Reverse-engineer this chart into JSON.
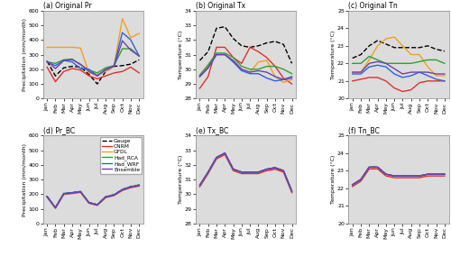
{
  "months": [
    "Jan",
    "Feb",
    "Mar",
    "Apr",
    "May",
    "Jun",
    "Jul",
    "Aug",
    "Sep",
    "Oct",
    "Nov",
    "Dec"
  ],
  "panels": {
    "a": {
      "title": "(a) Original Pr",
      "ylabel": "Precipitation (mm/month)",
      "ylim": [
        0,
        600
      ],
      "yticks": [
        0,
        100,
        200,
        300,
        400,
        500,
        600
      ],
      "series": {
        "Gauge": {
          "color": "#000000",
          "lw": 1.0,
          "ls": "--",
          "data": [
            255,
            155,
            210,
            220,
            215,
            165,
            100,
            185,
            220,
            225,
            235,
            265
          ]
        },
        "CNRM": {
          "color": "#e03030",
          "lw": 1.0,
          "ls": "-",
          "data": [
            215,
            115,
            185,
            205,
            195,
            155,
            135,
            155,
            175,
            185,
            215,
            175
          ]
        },
        "GFDL": {
          "color": "#f0a020",
          "lw": 1.0,
          "ls": "-",
          "data": [
            350,
            350,
            350,
            350,
            345,
            175,
            165,
            185,
            220,
            545,
            415,
            445
          ]
        },
        "Had_RCA": {
          "color": "#30a030",
          "lw": 1.0,
          "ls": "-",
          "data": [
            250,
            240,
            265,
            270,
            230,
            195,
            175,
            210,
            225,
            340,
            340,
            290
          ]
        },
        "Had_WRF": {
          "color": "#3060e0",
          "lw": 1.0,
          "ls": "-",
          "data": [
            250,
            225,
            260,
            250,
            205,
            200,
            155,
            195,
            225,
            450,
            400,
            290
          ]
        },
        "Ensemble": {
          "color": "#7040b0",
          "lw": 1.0,
          "ls": "-",
          "data": [
            255,
            205,
            260,
            265,
            235,
            185,
            155,
            200,
            220,
            395,
            330,
            290
          ]
        }
      }
    },
    "b": {
      "title": "(b) Original Tx",
      "ylabel": "Temperature (°C)",
      "ylim": [
        28,
        34
      ],
      "yticks": [
        28,
        29,
        30,
        31,
        32,
        33,
        34
      ],
      "series": {
        "Gauge": {
          "color": "#000000",
          "lw": 1.0,
          "ls": "--",
          "data": [
            30.6,
            31.2,
            32.8,
            32.9,
            32.1,
            31.6,
            31.5,
            31.6,
            31.8,
            31.9,
            31.7,
            30.4
          ]
        },
        "CNRM": {
          "color": "#e03030",
          "lw": 1.0,
          "ls": "-",
          "data": [
            28.7,
            29.5,
            31.5,
            31.5,
            30.8,
            30.4,
            31.5,
            31.2,
            30.8,
            30.2,
            29.4,
            29.0
          ]
        },
        "GFDL": {
          "color": "#f0a020",
          "lw": 1.0,
          "ls": "-",
          "data": [
            29.6,
            30.2,
            31.0,
            31.0,
            30.5,
            30.0,
            29.8,
            30.5,
            30.6,
            29.5,
            29.1,
            29.3
          ]
        },
        "Had_RCA": {
          "color": "#30a030",
          "lw": 1.0,
          "ls": "-",
          "data": [
            29.6,
            30.3,
            31.1,
            31.1,
            30.8,
            30.2,
            30.0,
            30.0,
            30.2,
            30.2,
            30.0,
            29.7
          ]
        },
        "Had_WRF": {
          "color": "#3060e0",
          "lw": 1.0,
          "ls": "-",
          "data": [
            29.5,
            30.1,
            31.0,
            31.0,
            30.5,
            29.9,
            29.7,
            29.7,
            29.4,
            29.2,
            29.3,
            29.5
          ]
        },
        "Ensemble": {
          "color": "#7040b0",
          "lw": 1.0,
          "ls": "-",
          "data": [
            29.5,
            30.1,
            31.0,
            31.0,
            30.6,
            30.0,
            29.8,
            29.9,
            29.8,
            29.5,
            29.3,
            29.4
          ]
        }
      }
    },
    "c": {
      "title": "(c) Original Tn",
      "ylabel": "Temperature (°C)",
      "ylim": [
        20,
        25
      ],
      "yticks": [
        20,
        21,
        22,
        23,
        24,
        25
      ],
      "series": {
        "Gauge": {
          "color": "#000000",
          "lw": 1.0,
          "ls": "--",
          "data": [
            22.3,
            22.5,
            23.0,
            23.3,
            23.1,
            22.9,
            22.9,
            22.9,
            22.9,
            23.0,
            22.8,
            22.7
          ]
        },
        "CNRM": {
          "color": "#e03030",
          "lw": 1.0,
          "ls": "-",
          "data": [
            21.0,
            21.1,
            21.2,
            21.2,
            21.0,
            20.6,
            20.4,
            20.5,
            20.9,
            21.0,
            21.0,
            21.0
          ]
        },
        "GFDL": {
          "color": "#f0a020",
          "lw": 1.0,
          "ls": "-",
          "data": [
            21.5,
            21.5,
            22.2,
            23.0,
            23.4,
            23.5,
            23.0,
            22.5,
            22.5,
            21.8,
            21.3,
            21.3
          ]
        },
        "Had_RCA": {
          "color": "#30a030",
          "lw": 1.0,
          "ls": "-",
          "data": [
            22.0,
            22.0,
            22.4,
            22.2,
            22.0,
            22.0,
            22.0,
            22.0,
            22.1,
            22.2,
            22.2,
            22.0
          ]
        },
        "Had_WRF": {
          "color": "#3060e0",
          "lw": 1.0,
          "ls": "-",
          "data": [
            21.4,
            21.4,
            21.8,
            21.9,
            21.8,
            21.4,
            21.2,
            21.3,
            21.5,
            21.3,
            21.1,
            21.0
          ]
        },
        "Ensemble": {
          "color": "#7040b0",
          "lw": 1.0,
          "ls": "-",
          "data": [
            21.5,
            21.5,
            22.0,
            22.1,
            22.0,
            21.7,
            21.4,
            21.5,
            21.5,
            21.5,
            21.4,
            21.4
          ]
        }
      }
    },
    "d": {
      "title": "(d) Pr_BC",
      "ylabel": "Precipitation (mm/month)",
      "ylim": [
        0,
        600
      ],
      "yticks": [
        0,
        100,
        200,
        300,
        400,
        500,
        600
      ],
      "series": {
        "Gauge": {
          "color": "#000000",
          "lw": 1.0,
          "ls": "--",
          "data": [
            185,
            108,
            205,
            210,
            218,
            143,
            128,
            182,
            196,
            232,
            252,
            262
          ]
        },
        "CNRM": {
          "color": "#e03030",
          "lw": 1.0,
          "ls": "-",
          "data": [
            180,
            103,
            198,
            204,
            212,
            138,
            123,
            176,
            190,
            225,
            244,
            255
          ]
        },
        "GFDL": {
          "color": "#f0a020",
          "lw": 1.0,
          "ls": "-",
          "data": [
            183,
            108,
            202,
            208,
            216,
            141,
            126,
            180,
            194,
            230,
            249,
            260
          ]
        },
        "Had_RCA": {
          "color": "#30a030",
          "lw": 1.0,
          "ls": "-",
          "data": [
            183,
            107,
            203,
            208,
            217,
            141,
            127,
            181,
            194,
            231,
            249,
            260
          ]
        },
        "Had_WRF": {
          "color": "#3060e0",
          "lw": 1.0,
          "ls": "-",
          "data": [
            185,
            108,
            205,
            210,
            218,
            143,
            128,
            182,
            196,
            232,
            251,
            262
          ]
        },
        "Ensemble": {
          "color": "#7040b0",
          "lw": 1.0,
          "ls": "-",
          "data": [
            183,
            107,
            202,
            208,
            216,
            141,
            126,
            180,
            194,
            230,
            248,
            260
          ]
        }
      }
    },
    "e": {
      "title": "(e) Tx_BC",
      "ylabel": "Temperature (°C)",
      "ylim": [
        28,
        34
      ],
      "yticks": [
        28,
        29,
        30,
        31,
        32,
        33,
        34
      ],
      "series": {
        "Gauge": {
          "color": "#000000",
          "lw": 1.0,
          "ls": "--",
          "data": [
            30.6,
            31.5,
            32.5,
            32.8,
            31.7,
            31.5,
            31.5,
            31.5,
            31.7,
            31.8,
            31.6,
            30.2
          ]
        },
        "CNRM": {
          "color": "#e03030",
          "lw": 1.0,
          "ls": "-",
          "data": [
            30.5,
            31.4,
            32.4,
            32.7,
            31.6,
            31.4,
            31.4,
            31.4,
            31.6,
            31.7,
            31.5,
            30.1
          ]
        },
        "GFDL": {
          "color": "#f0a020",
          "lw": 1.0,
          "ls": "-",
          "data": [
            30.6,
            31.5,
            32.5,
            32.8,
            31.7,
            31.5,
            31.5,
            31.5,
            31.7,
            31.8,
            31.6,
            30.2
          ]
        },
        "Had_RCA": {
          "color": "#30a030",
          "lw": 1.0,
          "ls": "-",
          "data": [
            30.6,
            31.5,
            32.5,
            32.8,
            31.7,
            31.5,
            31.5,
            31.5,
            31.7,
            31.8,
            31.6,
            30.2
          ]
        },
        "Had_WRF": {
          "color": "#3060e0",
          "lw": 1.0,
          "ls": "-",
          "data": [
            30.6,
            31.5,
            32.5,
            32.8,
            31.7,
            31.5,
            31.5,
            31.5,
            31.7,
            31.8,
            31.6,
            30.2
          ]
        },
        "Ensemble": {
          "color": "#7040b0",
          "lw": 1.0,
          "ls": "-",
          "data": [
            30.6,
            31.5,
            32.5,
            32.8,
            31.7,
            31.5,
            31.5,
            31.5,
            31.7,
            31.8,
            31.6,
            30.2
          ]
        }
      }
    },
    "f": {
      "title": "(f) Tn_BC",
      "ylabel": "Temperature (°C)",
      "ylim": [
        20,
        25
      ],
      "yticks": [
        20,
        21,
        22,
        23,
        24,
        25
      ],
      "series": {
        "Gauge": {
          "color": "#000000",
          "lw": 1.0,
          "ls": "--",
          "data": [
            22.2,
            22.5,
            23.2,
            23.2,
            22.8,
            22.7,
            22.7,
            22.7,
            22.7,
            22.8,
            22.8,
            22.8
          ]
        },
        "CNRM": {
          "color": "#e03030",
          "lw": 1.0,
          "ls": "-",
          "data": [
            22.1,
            22.4,
            23.1,
            23.1,
            22.7,
            22.6,
            22.6,
            22.6,
            22.6,
            22.7,
            22.7,
            22.7
          ]
        },
        "GFDL": {
          "color": "#f0a020",
          "lw": 1.0,
          "ls": "-",
          "data": [
            22.2,
            22.5,
            23.2,
            23.2,
            22.8,
            22.7,
            22.7,
            22.7,
            22.7,
            22.8,
            22.8,
            22.8
          ]
        },
        "Had_RCA": {
          "color": "#30a030",
          "lw": 1.0,
          "ls": "-",
          "data": [
            22.2,
            22.5,
            23.2,
            23.2,
            22.8,
            22.7,
            22.7,
            22.7,
            22.7,
            22.8,
            22.8,
            22.8
          ]
        },
        "Had_WRF": {
          "color": "#3060e0",
          "lw": 1.0,
          "ls": "-",
          "data": [
            22.2,
            22.5,
            23.2,
            23.2,
            22.8,
            22.7,
            22.7,
            22.7,
            22.7,
            22.8,
            22.8,
            22.8
          ]
        },
        "Ensemble": {
          "color": "#7040b0",
          "lw": 1.0,
          "ls": "-",
          "data": [
            22.2,
            22.5,
            23.2,
            23.2,
            22.8,
            22.7,
            22.7,
            22.7,
            22.7,
            22.8,
            22.8,
            22.8
          ]
        }
      }
    }
  },
  "legend_labels": [
    "Gauge",
    "CNRM",
    "GFDL",
    "Had_RCA",
    "Had_WRF",
    "Ensemble"
  ],
  "legend_colors": [
    "#000000",
    "#e03030",
    "#f0a020",
    "#30a030",
    "#3060e0",
    "#7040b0"
  ],
  "legend_ls": [
    "--",
    "-",
    "-",
    "-",
    "-",
    "-"
  ],
  "bg_color": "#dcdcdc"
}
